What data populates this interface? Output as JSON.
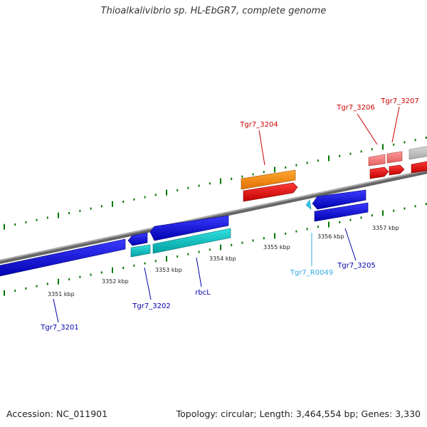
{
  "title": "Thioalkalivibrio sp. HL-EbGR7, complete genome",
  "footer": {
    "accession": "Accession: NC_011901",
    "summary": "Topology: circular; Length: 3,464,554 bp; Genes: 3,330"
  },
  "ticks": [
    "3351 kbp",
    "3352 kbp",
    "3353 kbp",
    "3354 kbp",
    "3355 kbp",
    "3356 kbp",
    "3357 kbp"
  ],
  "genes": [
    {
      "label": "Tgr7_3201",
      "color": "#0000aa"
    },
    {
      "label": "Tgr7_3202",
      "color": "#0000aa"
    },
    {
      "label": "rbcL",
      "color": "#0000aa"
    },
    {
      "label": "Tgr7_3204",
      "color": "#cc0000"
    },
    {
      "label": "Tgr7_R0049",
      "color": "#33aadd"
    },
    {
      "label": "Tgr7_3205",
      "color": "#0000aa"
    },
    {
      "label": "Tgr7_3206",
      "color": "#cc0000"
    },
    {
      "label": "Tgr7_3207",
      "color": "#cc0000"
    }
  ],
  "colors": {
    "forward_strand": "#ff0000",
    "reverse_strand": "#0000ee",
    "cds_forward": "#ff8a00",
    "cds_reverse": "#00c8c8",
    "rna": "#33ccee",
    "pseudo": "#ff7f7f",
    "backbone": "#888888",
    "tick": "#007700"
  }
}
